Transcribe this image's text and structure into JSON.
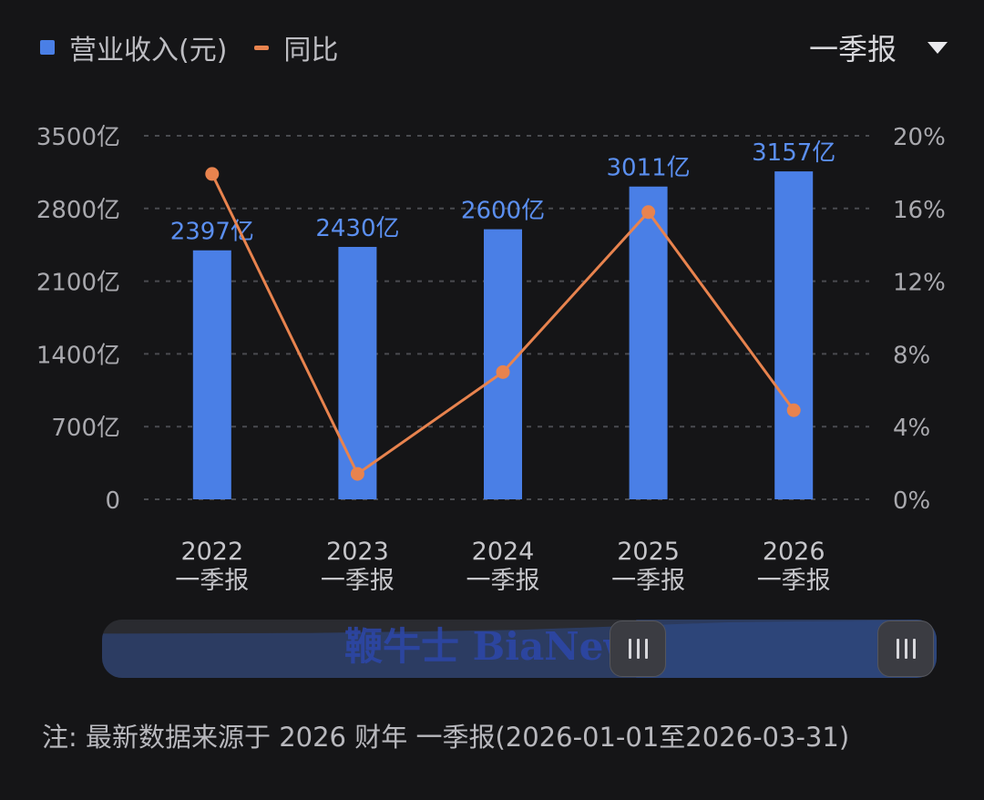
{
  "legend": {
    "revenue_label": "营业收入(元)",
    "yoy_label": "同比",
    "revenue_color": "#4a7fe6",
    "yoy_color": "#e8834e"
  },
  "period_select": {
    "value": "一季报"
  },
  "chart_data": {
    "type": "bar",
    "categories": [
      "2022\n一季报",
      "2023\n一季报",
      "2024\n一季报",
      "2025\n一季报",
      "2026\n一季报"
    ],
    "series": [
      {
        "name": "营业收入(元)",
        "type": "bar",
        "values": [
          2397,
          2430,
          2600,
          3011,
          3157
        ],
        "labels": [
          "2397亿",
          "2430亿",
          "2600亿",
          "3011亿",
          "3157亿"
        ],
        "axis": "left"
      },
      {
        "name": "同比",
        "type": "line",
        "values": [
          17.9,
          1.4,
          7.0,
          15.8,
          4.9
        ],
        "axis": "right"
      }
    ],
    "y_left": {
      "ticks": [
        0,
        700,
        1400,
        2100,
        2800,
        3500
      ],
      "tick_labels": [
        "0",
        "700亿",
        "1400亿",
        "2100亿",
        "2800亿",
        "3500亿"
      ],
      "range": [
        0,
        3500
      ]
    },
    "y_right": {
      "ticks": [
        0,
        4,
        8,
        12,
        16,
        20
      ],
      "tick_labels": [
        "0%",
        "4%",
        "8%",
        "12%",
        "16%",
        "20%"
      ],
      "range": [
        0,
        20
      ]
    },
    "grid": "dashed-horizontal",
    "legend": "top-left"
  },
  "range_slider": {
    "watermark": "鞭牛士 BiaNews",
    "start_fraction": 0.64,
    "end_fraction": 1.0
  },
  "note": "注: 最新数据来源于 2026 财年 一季报(2026-01-01至2026-03-31)"
}
